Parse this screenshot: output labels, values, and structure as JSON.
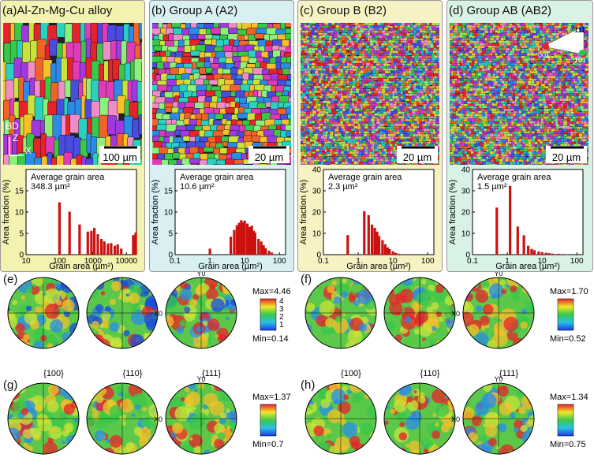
{
  "panels": [
    {
      "id": "a",
      "title": "(a)Al-Zn-Mg-Cu alloy",
      "bg": "#f4f2b0",
      "scalebar": "100 µm",
      "axes_labels": [
        "BD",
        "Z",
        "X"
      ]
    },
    {
      "id": "b",
      "title": "(b)   Group A (A2)",
      "bg": "#d8f0f2",
      "scalebar": "20 µm"
    },
    {
      "id": "c",
      "title": "(c)   Group B (B2)",
      "bg": "#f6f2c4",
      "scalebar": "20 µm"
    },
    {
      "id": "d",
      "title": "(d) Group AB (AB2)",
      "bg": "#d8f2e6",
      "scalebar": "20 µm",
      "ipf_labels": [
        "001",
        "101",
        "111"
      ]
    }
  ],
  "chart_data": [
    {
      "type": "bar",
      "panel": "a",
      "annotation": [
        "Average grain area",
        "348.3 µm²"
      ],
      "ylabel": "Area fraction (%)",
      "xlabel": "Grain area (µm²)",
      "ylim": [
        0,
        20
      ],
      "yticks": [
        0,
        5,
        10,
        15
      ],
      "xscale": "log",
      "xlim": [
        10,
        20000
      ],
      "xticks": [
        10,
        100,
        1000,
        10000
      ],
      "xticklabels": [
        "10",
        "100",
        "1000",
        "10000"
      ],
      "x": [
        100,
        200,
        400,
        700,
        900,
        1100,
        1400,
        1800,
        2200,
        2800,
        3500,
        4500,
        5500,
        7000,
        16000,
        19000
      ],
      "values": [
        12.3,
        10.1,
        7.1,
        5.4,
        5.6,
        6.3,
        4.8,
        3.7,
        3.1,
        2.6,
        2.7,
        2.1,
        2.4,
        1.4,
        4.6,
        5.2
      ]
    },
    {
      "type": "bar",
      "panel": "b",
      "annotation": [
        "Average grain area",
        "10.6 µm²"
      ],
      "ylabel": "",
      "xlabel": "Grain area (µm²)",
      "ylim": [
        0,
        20
      ],
      "yticks": [
        0,
        5,
        10,
        15
      ],
      "xscale": "log",
      "xlim": [
        0.1,
        150
      ],
      "xticks": [
        0.1,
        1,
        10,
        100
      ],
      "xticklabels": [
        "0.1",
        "1",
        "10",
        "100"
      ],
      "x": [
        1,
        4,
        5,
        6,
        7,
        8,
        9,
        10,
        12,
        14,
        16,
        18,
        20,
        25,
        30,
        35,
        40,
        50,
        60
      ],
      "values": [
        1.4,
        4.2,
        5.8,
        6.9,
        7.5,
        8.1,
        7.6,
        8.0,
        7.3,
        6.5,
        6.8,
        5.6,
        5.2,
        3.7,
        3.1,
        2.2,
        1.5,
        0.9,
        0.5
      ]
    },
    {
      "type": "bar",
      "panel": "c",
      "annotation": [
        "Average grain area",
        "2.3 µm²"
      ],
      "ylabel": "",
      "xlabel": "Grain area (µm²)",
      "ylim": [
        0,
        40
      ],
      "yticks": [
        0,
        10,
        20,
        30,
        40
      ],
      "xscale": "log",
      "xlim": [
        0.1,
        150
      ],
      "xticks": [
        0.1,
        1,
        10,
        100
      ],
      "xticklabels": [
        "0.1",
        "1",
        "10",
        "100"
      ],
      "x": [
        0.5,
        1.5,
        2.0,
        2.5,
        3.0,
        3.5,
        4.0,
        5.0,
        6.0,
        7.0,
        8.0,
        10,
        12,
        15
      ],
      "values": [
        9.2,
        20.4,
        18.5,
        14.1,
        12.6,
        10.8,
        8.7,
        6.8,
        4.9,
        3.4,
        2.6,
        1.6,
        0.9,
        0.4
      ]
    },
    {
      "type": "bar",
      "panel": "d",
      "annotation": [
        "Average grain area",
        "1.5 µm²"
      ],
      "ylabel": "",
      "xlabel": "Grain area (µm²)",
      "ylim": [
        0,
        40
      ],
      "yticks": [
        0,
        10,
        20,
        30,
        40
      ],
      "xscale": "log",
      "xlim": [
        0.1,
        150
      ],
      "xticks": [
        0.1,
        1,
        10,
        100
      ],
      "xticklabels": [
        "0.1",
        "1",
        "10",
        "100"
      ],
      "x": [
        0.5,
        1.2,
        2.0,
        3.0,
        4.0,
        5.0,
        6.0,
        8.0,
        10,
        13,
        16,
        20,
        30,
        40,
        50
      ],
      "values": [
        22.1,
        32.3,
        13.2,
        9.1,
        4.2,
        2.7,
        2.1,
        1.5,
        1.2,
        0.9,
        0.7,
        0.5,
        0.4,
        0.3,
        0.2
      ]
    }
  ],
  "pole_figures": [
    {
      "id": "e",
      "label": "(e)",
      "planes": [],
      "max": "Max=4.46",
      "min": "Min=0.14",
      "ticks": [
        "4",
        "3",
        "2",
        "1"
      ],
      "x0": "X0",
      "y0": "Y0"
    },
    {
      "id": "f",
      "label": "(f)",
      "planes": [],
      "max": "Max=1.70",
      "min": "Min=0.52",
      "ticks": [],
      "x0": "X0",
      "y0": "Y0"
    },
    {
      "id": "g",
      "label": "(g)",
      "planes": [
        "{100}",
        "{110}",
        "{111}"
      ],
      "max": "Max=1.37",
      "min": "Min=0.7",
      "ticks": [],
      "x0": "X0",
      "y0": "Y0"
    },
    {
      "id": "h",
      "label": "(h)",
      "planes": [
        "{100}",
        "{110}",
        "{111}"
      ],
      "max": "Max=1.34",
      "min": "Min=0.75",
      "ticks": [],
      "x0": "X0",
      "y0": "Y0"
    }
  ],
  "colors": {
    "bar": "#cc1111",
    "ebsd_palette": [
      "#e8222a",
      "#f0642a",
      "#f6c02a",
      "#c8e43a",
      "#3ac84a",
      "#2ad0c0",
      "#2a8ce8",
      "#4a4ce0",
      "#a03ae0",
      "#e03ab8",
      "#f08cc8",
      "#8cf07a"
    ]
  }
}
